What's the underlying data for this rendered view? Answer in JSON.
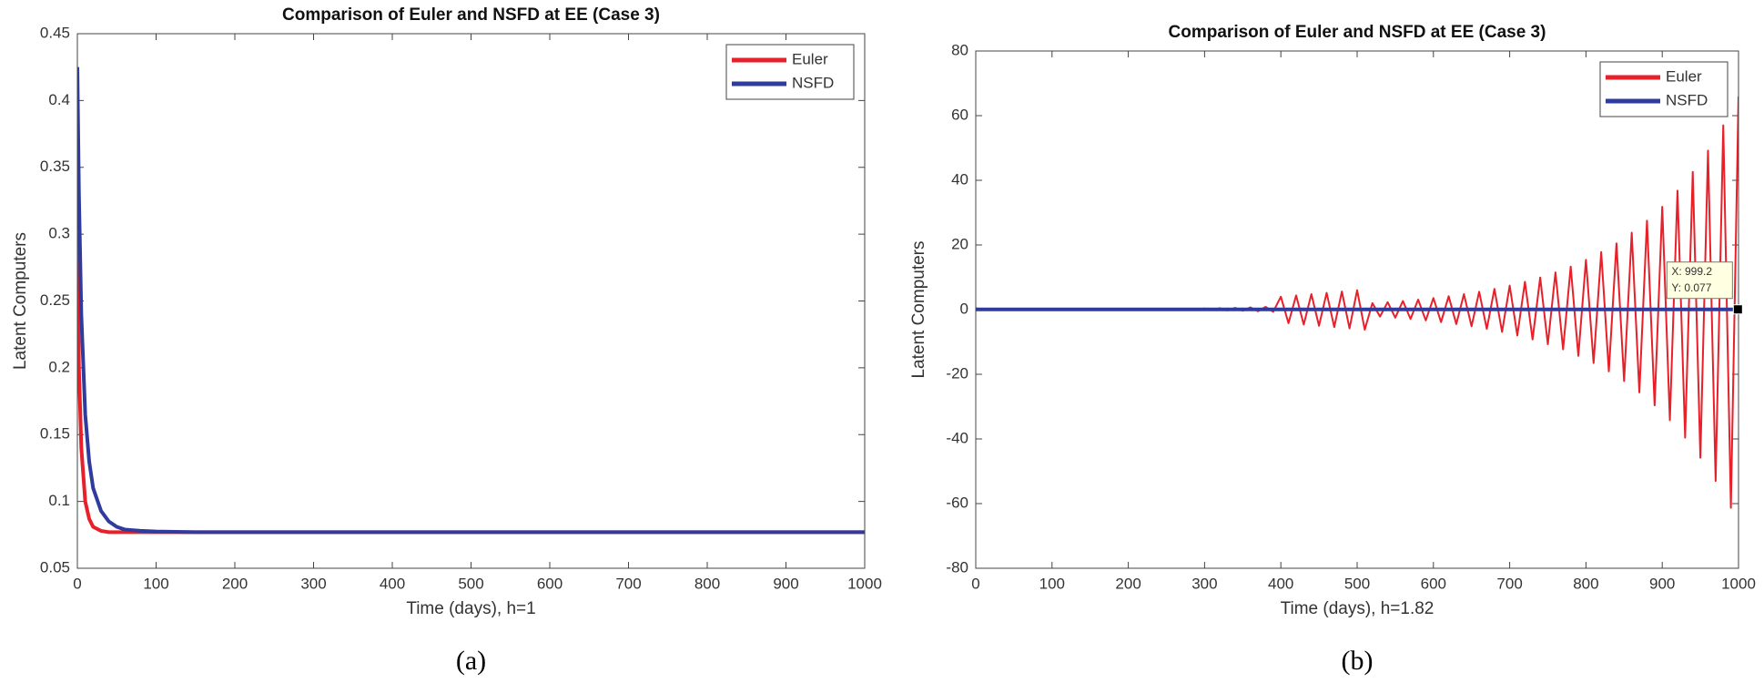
{
  "chart_data": [
    {
      "type": "line",
      "title": "Comparison of Euler and NSFD at EE (Case 3)",
      "xlabel": "Time (days), h=1",
      "ylabel": "Latent Computers",
      "caption": "(a)",
      "xlim": [
        0,
        1000
      ],
      "ylim": [
        0.05,
        0.45
      ],
      "xticks": [
        0,
        100,
        200,
        300,
        400,
        500,
        600,
        700,
        800,
        900,
        1000
      ],
      "yticks": [
        0.05,
        0.1,
        0.15,
        0.2,
        0.25,
        0.3,
        0.35,
        0.4,
        0.45
      ],
      "legend": "top-right",
      "series": [
        {
          "name": "Euler",
          "color": "#e8202a",
          "x": [
            0,
            2,
            5,
            10,
            15,
            20,
            30,
            40,
            50,
            60,
            80,
            100,
            150,
            200,
            300,
            400,
            500,
            600,
            700,
            800,
            900,
            1000
          ],
          "values": [
            0.3,
            0.2,
            0.14,
            0.1,
            0.087,
            0.081,
            0.078,
            0.077,
            0.077,
            0.077,
            0.077,
            0.077,
            0.077,
            0.077,
            0.077,
            0.077,
            0.077,
            0.077,
            0.077,
            0.077,
            0.077,
            0.077
          ]
        },
        {
          "name": "NSFD",
          "color": "#2f3c9e",
          "x": [
            0,
            2,
            5,
            10,
            15,
            20,
            30,
            40,
            50,
            60,
            80,
            100,
            150,
            200,
            300,
            400,
            500,
            600,
            700,
            800,
            900,
            1000
          ],
          "values": [
            0.425,
            0.33,
            0.24,
            0.165,
            0.13,
            0.11,
            0.093,
            0.085,
            0.081,
            0.079,
            0.078,
            0.0775,
            0.077,
            0.077,
            0.077,
            0.077,
            0.077,
            0.077,
            0.077,
            0.077,
            0.077,
            0.077
          ]
        }
      ]
    },
    {
      "type": "line",
      "title": "Comparison of Euler and NSFD at EE (Case 3)",
      "xlabel": "Time (days), h=1.82",
      "ylabel": "Latent Computers",
      "caption": "(b)",
      "xlim": [
        0,
        1000
      ],
      "ylim": [
        -80,
        80
      ],
      "xticks": [
        0,
        100,
        200,
        300,
        400,
        500,
        600,
        700,
        800,
        900,
        1000
      ],
      "yticks": [
        -80,
        -60,
        -40,
        -20,
        0,
        20,
        40,
        60,
        80
      ],
      "legend": "top-right",
      "datatip": {
        "x": 999.2,
        "y": 0.077,
        "x_label": "X: 999.2",
        "y_label": "Y: 0.077"
      },
      "series": [
        {
          "name": "Euler",
          "color": "#e8202a",
          "x": [
            0,
            10,
            20,
            30,
            40,
            50,
            60,
            70,
            80,
            90,
            100,
            110,
            120,
            130,
            140,
            150,
            160,
            170,
            180,
            190,
            200,
            210,
            220,
            230,
            240,
            250,
            260,
            270,
            280,
            290,
            300,
            310,
            320,
            330,
            340,
            350,
            360,
            370,
            380,
            390,
            400,
            410,
            420,
            430,
            440,
            450,
            460,
            470,
            480,
            490,
            500,
            510,
            520,
            530,
            540,
            550,
            560,
            570,
            580,
            590,
            600,
            610,
            620,
            630,
            640,
            650,
            660,
            670,
            680,
            690,
            700,
            710,
            720,
            730,
            740,
            750,
            760,
            770,
            780,
            790,
            800,
            810,
            820,
            830,
            840,
            850,
            860,
            870,
            880,
            890,
            900,
            910,
            920,
            930,
            940,
            950,
            960,
            970,
            980,
            990,
            1000
          ],
          "values": [
            0.43,
            0.02,
            0.15,
            0.04,
            0.13,
            0.05,
            0.12,
            0.05,
            0.12,
            0.05,
            0.12,
            0.05,
            0.12,
            0.05,
            0.12,
            0.05,
            0.12,
            0.05,
            0.12,
            0.05,
            0.12,
            0.05,
            0.12,
            0.05,
            0.12,
            0.05,
            0.2,
            -0.05,
            0.3,
            -0.1,
            0.35,
            -0.15,
            0.45,
            -0.25,
            0.55,
            -0.35,
            0.7,
            -0.5,
            0.85,
            -0.65,
            4.0,
            -4.2,
            4.4,
            -4.6,
            4.8,
            -5.0,
            5.2,
            -5.4,
            5.6,
            -5.8,
            6.0,
            -6.2,
            2.0,
            -2.15,
            2.31,
            -2.49,
            2.68,
            -2.88,
            3.1,
            -3.33,
            3.58,
            -3.85,
            4.14,
            -4.46,
            4.79,
            -5.15,
            5.54,
            -5.96,
            6.41,
            -6.9,
            7.42,
            -7.98,
            8.58,
            -9.23,
            9.93,
            -10.7,
            11.5,
            -12.3,
            13.3,
            -14.3,
            15.4,
            -16.5,
            17.8,
            -19.1,
            20.5,
            -22.1,
            23.8,
            -25.6,
            27.5,
            -29.6,
            31.8,
            -34.2,
            36.8,
            -39.6,
            42.6,
            -45.8,
            49.2,
            -53.0,
            57.0,
            -61.3,
            65.9
          ]
        },
        {
          "name": "NSFD",
          "color": "#2f3c9e",
          "x": [
            0,
            1000
          ],
          "values": [
            0.077,
            0.077
          ]
        }
      ]
    }
  ]
}
